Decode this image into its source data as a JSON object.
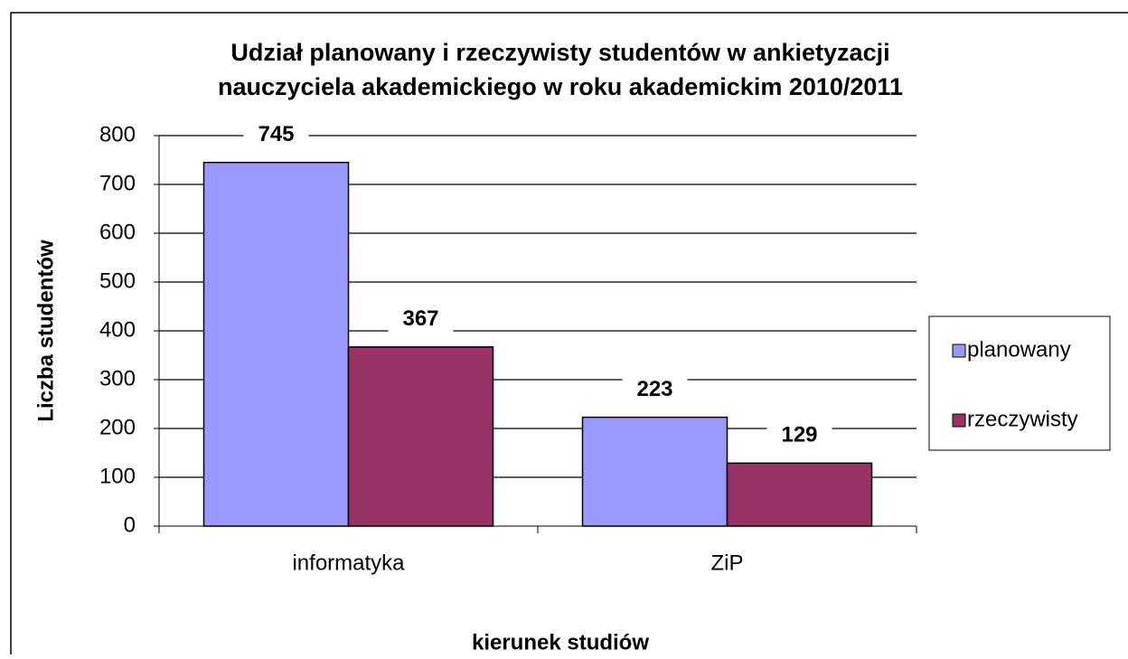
{
  "chart_data": {
    "type": "bar",
    "title": [
      "Udział planowany i rzeczywisty studentów w ankietyzacji",
      "nauczyciela akademickiego w roku akademickim 2010/2011"
    ],
    "x_label": "kierunek studiów",
    "y_label": "Liczba studentów",
    "categories": [
      "informatyka",
      "ZiP"
    ],
    "series": [
      {
        "name": "planowany",
        "color": "#9999ff",
        "values": [
          745,
          223
        ]
      },
      {
        "name": "rzeczywisty",
        "color": "#993366",
        "values": [
          367,
          129
        ]
      }
    ],
    "ylim": [
      0,
      800
    ],
    "yticks": [
      0,
      100,
      200,
      300,
      400,
      500,
      600,
      700,
      800
    ],
    "grid": true,
    "legend": "right"
  }
}
